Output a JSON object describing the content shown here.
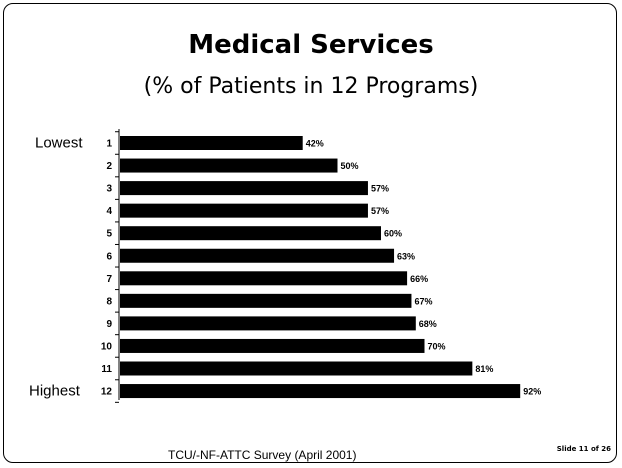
{
  "slide": {
    "title": "Medical Services",
    "subtitle": "(% of Patients in 12 Programs)",
    "footer": "TCU/-NF-ATTC Survey (April 2001)",
    "slide_number": "Slide 11 of 26"
  },
  "chart_data": {
    "type": "bar",
    "orientation": "horizontal",
    "title": "Medical Services",
    "subtitle": "(% of Patients in 12 Programs)",
    "categories": [
      "1",
      "2",
      "3",
      "4",
      "5",
      "6",
      "7",
      "8",
      "9",
      "10",
      "11",
      "12"
    ],
    "values": [
      42,
      50,
      57,
      57,
      60,
      63,
      66,
      67,
      68,
      70,
      81,
      92
    ],
    "data_labels": [
      "42%",
      "50%",
      "57%",
      "57%",
      "60%",
      "63%",
      "66%",
      "67%",
      "68%",
      "70%",
      "81%",
      "92%"
    ],
    "range_labels": {
      "first": "Lowest",
      "last": "Highest"
    },
    "xlim": [
      0,
      100
    ],
    "bar_color": "#000000",
    "grid": false,
    "legend": "none"
  }
}
